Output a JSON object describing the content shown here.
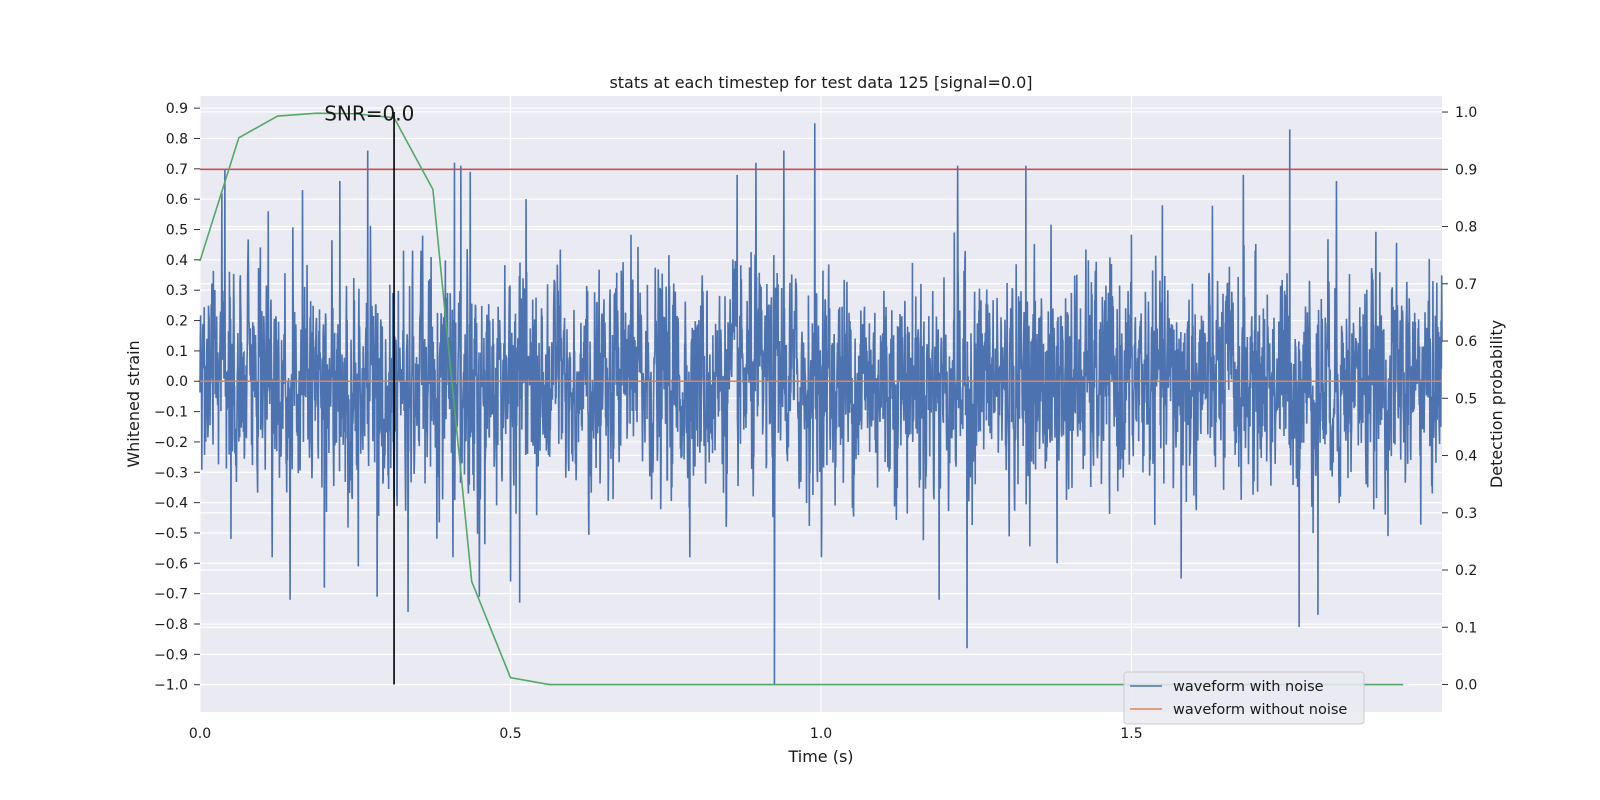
{
  "chart_data": {
    "type": "line",
    "title": "stats at each timestep for test data 125 [signal=0.0]",
    "xlabel": "Time (s)",
    "ylabel_left": "Whitened strain",
    "ylabel_right": "Detection probability",
    "xlim": [
      0.0,
      2.0
    ],
    "ylim_left": [
      -1.09,
      0.94
    ],
    "ylim_right": [
      -0.048,
      1.028
    ],
    "x_ticks": [
      0.0,
      0.5,
      1.0,
      1.5
    ],
    "x_tick_labels": [
      "0.0",
      "0.5",
      "1.0",
      "1.5"
    ],
    "y_left_ticks": [
      0.9,
      0.8,
      0.7,
      0.6,
      0.5,
      0.4,
      0.3,
      0.2,
      0.1,
      0.0,
      -0.1,
      -0.2,
      -0.3,
      -0.4,
      -0.5,
      -0.6,
      -0.7,
      -0.8,
      -0.9,
      -1.0
    ],
    "y_left_tick_labels": [
      "0.9",
      "0.8",
      "0.7",
      "0.6",
      "0.5",
      "0.4",
      "0.3",
      "0.2",
      "0.1",
      "0.0",
      "−0.1",
      "−0.2",
      "−0.3",
      "−0.4",
      "−0.5",
      "−0.6",
      "−0.7",
      "−0.8",
      "−0.9",
      "−1.0"
    ],
    "y_right_ticks": [
      1.0,
      0.9,
      0.8,
      0.7,
      0.6,
      0.5,
      0.4,
      0.3,
      0.2,
      0.1,
      0.0
    ],
    "y_right_tick_labels": [
      "1.0",
      "0.9",
      "0.8",
      "0.7",
      "0.6",
      "0.5",
      "0.4",
      "0.3",
      "0.2",
      "0.1",
      "0.0"
    ],
    "grid": true,
    "legend_position": "bottom-right",
    "annotation": {
      "text": "SNR=0.0",
      "x": 0.2,
      "y": 0.86
    },
    "vertical_marker_x": 0.3125,
    "threshold_probability": 0.9,
    "series": [
      {
        "name": "waveform with noise",
        "color": "#4c72b0",
        "axis": "left",
        "kind": "noise",
        "x_range": [
          0.0,
          2.0
        ],
        "sample_count": 4096,
        "spikes": [
          {
            "x": 0.035,
            "y": 0.62
          },
          {
            "x": 0.04,
            "y": 0.7
          },
          {
            "x": 0.05,
            "y": -0.52
          },
          {
            "x": 0.11,
            "y": 0.56
          },
          {
            "x": 0.145,
            "y": -0.72
          },
          {
            "x": 0.165,
            "y": 0.63
          },
          {
            "x": 0.2,
            "y": -0.68
          },
          {
            "x": 0.225,
            "y": 0.66
          },
          {
            "x": 0.255,
            "y": -0.61
          },
          {
            "x": 0.27,
            "y": 0.76
          },
          {
            "x": 0.285,
            "y": -0.71
          },
          {
            "x": 0.335,
            "y": -0.76
          },
          {
            "x": 0.41,
            "y": 0.72
          },
          {
            "x": 0.42,
            "y": 0.71
          },
          {
            "x": 0.435,
            "y": 0.69
          },
          {
            "x": 0.45,
            "y": -0.71
          },
          {
            "x": 0.5,
            "y": -0.66
          },
          {
            "x": 0.515,
            "y": -0.73
          },
          {
            "x": 0.525,
            "y": 0.6
          },
          {
            "x": 0.865,
            "y": 0.68
          },
          {
            "x": 0.895,
            "y": 0.72
          },
          {
            "x": 0.925,
            "y": -1.0
          },
          {
            "x": 0.94,
            "y": 0.76
          },
          {
            "x": 0.99,
            "y": 0.85
          },
          {
            "x": 1.19,
            "y": -0.72
          },
          {
            "x": 1.22,
            "y": 0.71
          },
          {
            "x": 1.235,
            "y": -0.88
          },
          {
            "x": 1.33,
            "y": 0.71
          },
          {
            "x": 1.38,
            "y": -0.6
          },
          {
            "x": 1.58,
            "y": -0.65
          },
          {
            "x": 1.68,
            "y": 0.68
          },
          {
            "x": 1.755,
            "y": 0.83
          },
          {
            "x": 1.77,
            "y": -0.81
          },
          {
            "x": 1.8,
            "y": -0.77
          },
          {
            "x": 1.83,
            "y": 0.66
          }
        ]
      },
      {
        "name": "waveform without noise",
        "color": "#dd8452",
        "axis": "left",
        "x": [
          0.0,
          2.0
        ],
        "y": [
          0.0,
          0.0
        ]
      },
      {
        "name": "detection probability",
        "color": "#55a868",
        "axis": "right",
        "x": [
          0.0,
          0.0625,
          0.125,
          0.1875,
          0.25,
          0.3125,
          0.375,
          0.4375,
          0.5,
          0.5625,
          0.625,
          0.6875,
          0.75,
          0.8125,
          0.875,
          0.9375,
          1.0,
          1.0625,
          1.125,
          1.1875,
          1.25,
          1.3125,
          1.375,
          1.4375,
          1.5,
          1.5625,
          1.625,
          1.6875,
          1.75,
          1.8125,
          1.875,
          1.9375
        ],
        "y": [
          0.74,
          0.955,
          0.993,
          0.998,
          0.997,
          0.99,
          0.865,
          0.18,
          0.012,
          0.0,
          0.0,
          0.0,
          0.0,
          0.0,
          0.0,
          0.0,
          0.0,
          0.0,
          0.0,
          0.0,
          0.0,
          0.0,
          0.0,
          0.0,
          0.0,
          0.0,
          0.0,
          0.0,
          0.0,
          0.0,
          0.0,
          0.0
        ]
      },
      {
        "name": "threshold",
        "color": "#c44e52",
        "axis": "right",
        "x": [
          0.0,
          2.0
        ],
        "y": [
          0.9,
          0.9
        ]
      }
    ],
    "legend_entries": [
      {
        "label": "waveform with noise",
        "color": "#4c72b0"
      },
      {
        "label": "waveform without noise",
        "color": "#dd8452"
      }
    ]
  }
}
